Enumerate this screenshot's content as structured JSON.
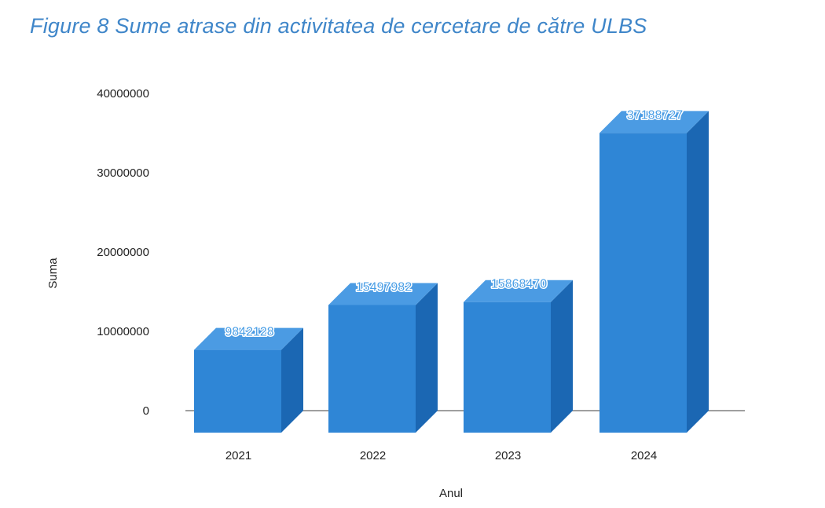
{
  "figure_caption": "Figure 8 Sume atrase din activitatea de cercetare de către ULBS",
  "chart_data": {
    "type": "bar",
    "style": "3d-column",
    "categories": [
      "2021",
      "2022",
      "2023",
      "2024"
    ],
    "values": [
      9842128,
      15497982,
      15868470,
      37188727
    ],
    "data_labels": [
      "9842128",
      "15497982",
      "15868470",
      "37188727"
    ],
    "xlabel": "Anul",
    "ylabel": "Suma",
    "ylim": [
      0,
      40000000
    ],
    "yticks": [
      "0",
      "10000000",
      "20000000",
      "30000000",
      "40000000"
    ],
    "grid": false,
    "legend": "none",
    "colors": {
      "front": "#2f86d6",
      "top": "#4b9be3",
      "side": "#1b67b3",
      "label": "#4a9fe6",
      "axis": "#666666"
    }
  }
}
